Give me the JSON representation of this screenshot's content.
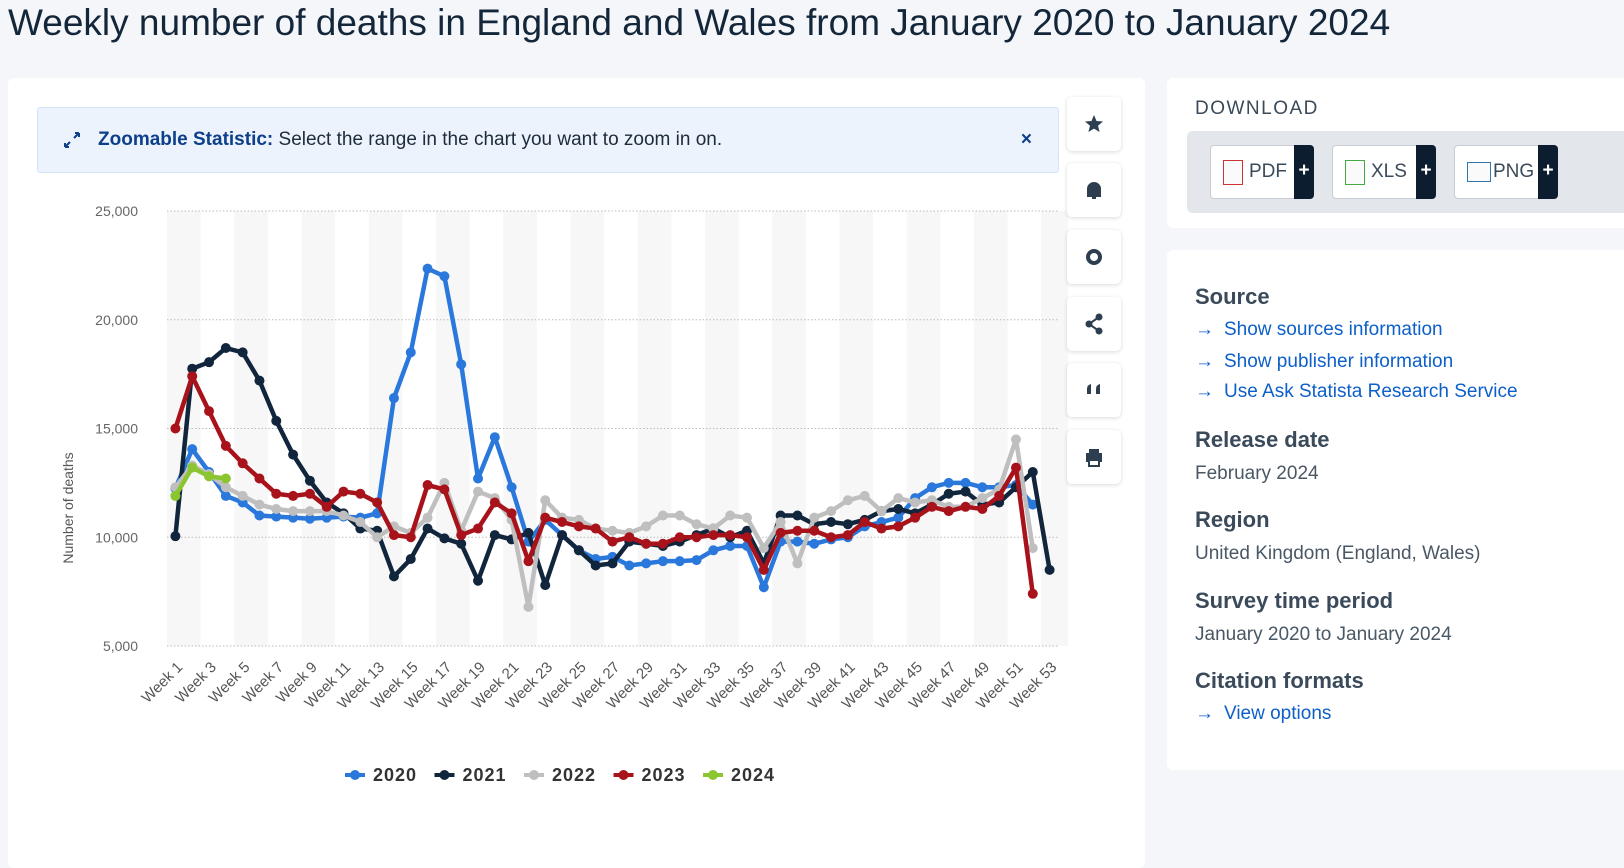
{
  "chart_data": {
    "type": "line",
    "title": "Weekly number of deaths in England and Wales from January 2020 to January 2024",
    "ylabel": "Number of deaths",
    "categories": [
      "Week 1",
      null,
      "Week 3",
      null,
      "Week 5",
      null,
      "Week 7",
      null,
      "Week 9",
      null,
      "Week 11",
      null,
      "Week 13",
      null,
      "Week 15",
      null,
      "Week 17",
      null,
      "Week 19",
      null,
      "Week 21",
      null,
      "Week 23",
      null,
      "Week 25",
      null,
      "Week 27",
      null,
      "Week 29",
      null,
      "Week 31",
      null,
      "Week 33",
      null,
      "Week 35",
      null,
      "Week 37",
      null,
      "Week 39",
      null,
      "Week 41",
      null,
      "Week 43",
      null,
      "Week 45",
      null,
      "Week 47",
      null,
      "Week 49",
      null,
      "Week 51",
      null,
      "Week 53"
    ],
    "ylim": [
      5000,
      25000
    ],
    "yticks": [
      {
        "value": 5000,
        "label": "5,000"
      },
      {
        "value": 10000,
        "label": "10,000"
      },
      {
        "value": 15000,
        "label": "15,000"
      },
      {
        "value": 20000,
        "label": "20,000"
      },
      {
        "value": 25000,
        "label": "25,000"
      }
    ],
    "grid": true,
    "legend": "bottom",
    "series": [
      {
        "name": "2020",
        "color": "#2a78dc",
        "values": [
          12250,
          14050,
          13000,
          11900,
          11600,
          11000,
          10950,
          10900,
          10850,
          10900,
          10950,
          10900,
          11100,
          16400,
          18500,
          22350,
          22000,
          17950,
          12700,
          14600,
          12300,
          9800,
          10800,
          10100,
          9400,
          9000,
          9100,
          8700,
          8800,
          8900,
          8900,
          8950,
          9400,
          9600,
          9600,
          7700,
          9800,
          9800,
          9700,
          9900,
          10000,
          10500,
          10700,
          10900,
          11800,
          12300,
          12500,
          12500,
          12300,
          12300,
          12400,
          11500,
          null
        ]
      },
      {
        "name": "2021",
        "color": "#11263d",
        "values": [
          10050,
          17750,
          18050,
          18700,
          18500,
          17200,
          15350,
          13800,
          12600,
          11600,
          11100,
          10400,
          10300,
          8200,
          9000,
          10400,
          9950,
          9700,
          8000,
          10100,
          9900,
          10200,
          7800,
          10100,
          9400,
          8700,
          8800,
          9800,
          9700,
          9600,
          9800,
          10100,
          10400,
          10000,
          10300,
          8800,
          11000,
          11000,
          10600,
          10700,
          10600,
          10800,
          11200,
          11300,
          11100,
          11500,
          12000,
          12100,
          11500,
          11600,
          12300,
          13000,
          8500
        ]
      },
      {
        "name": "2022",
        "color": "#bfbfbf",
        "values": [
          12300,
          13300,
          12900,
          12300,
          11900,
          11500,
          11300,
          11200,
          11200,
          11200,
          11000,
          10700,
          10000,
          10500,
          10200,
          10900,
          12500,
          10300,
          12100,
          11800,
          10800,
          6800,
          11700,
          10900,
          10800,
          10400,
          10300,
          10200,
          10500,
          11000,
          11000,
          10600,
          10400,
          11000,
          10900,
          9500,
          10700,
          8800,
          10900,
          11200,
          11700,
          11900,
          11200,
          11800,
          11600,
          11700,
          11400,
          11400,
          11800,
          12200,
          14500,
          9500,
          null
        ]
      },
      {
        "name": "2023",
        "color": "#a8121a",
        "values": [
          15000,
          17400,
          15800,
          14200,
          13400,
          12700,
          12000,
          11900,
          12000,
          11400,
          12100,
          12000,
          11600,
          10100,
          10000,
          12400,
          12200,
          10100,
          10400,
          11600,
          11100,
          8900,
          10900,
          10700,
          10500,
          10400,
          9800,
          10000,
          9700,
          9700,
          10000,
          10000,
          10100,
          10100,
          10000,
          8500,
          10200,
          10300,
          10300,
          10000,
          10100,
          10700,
          10400,
          10500,
          10900,
          11400,
          11200,
          11400,
          11300,
          11900,
          13200,
          7400,
          null
        ]
      },
      {
        "name": "2024",
        "color": "#8bc530",
        "values": [
          11900,
          13200,
          12800,
          12700,
          null,
          null,
          null,
          null,
          null,
          null,
          null,
          null,
          null,
          null,
          null,
          null,
          null,
          null,
          null,
          null,
          null,
          null,
          null,
          null,
          null,
          null,
          null,
          null,
          null,
          null,
          null,
          null,
          null,
          null,
          null,
          null,
          null,
          null,
          null,
          null,
          null,
          null,
          null,
          null,
          null,
          null,
          null,
          null,
          null,
          null,
          null,
          null,
          null
        ]
      }
    ]
  },
  "banner": {
    "label": "Zoomable Statistic:",
    "text": "Select the range in the chart you want to zoom in on."
  },
  "download": {
    "title": "DOWNLOAD",
    "buttons": [
      "PDF",
      "XLS",
      "PNG"
    ]
  },
  "info": {
    "source": {
      "title": "Source",
      "links": [
        "Show sources information",
        "Show publisher information",
        "Use Ask Statista Research Service"
      ]
    },
    "release": {
      "title": "Release date",
      "text": "February 2024"
    },
    "region": {
      "title": "Region",
      "text": "United Kingdom (England, Wales)"
    },
    "period": {
      "title": "Survey time period",
      "text": "January 2020 to January 2024"
    },
    "citation": {
      "title": "Citation formats",
      "link": "View options"
    }
  }
}
